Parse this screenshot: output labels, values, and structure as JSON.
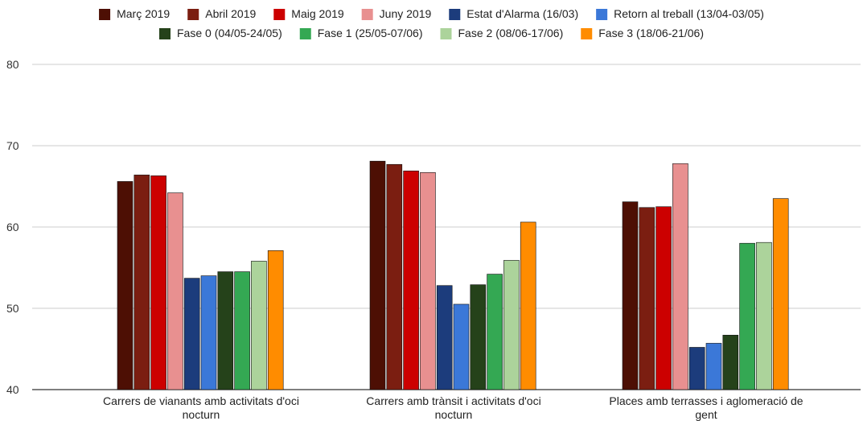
{
  "chart_data": {
    "type": "bar",
    "title": "",
    "xlabel": "",
    "ylabel": "",
    "ylim": [
      40,
      80
    ],
    "yticks": [
      40,
      50,
      60,
      70,
      80
    ],
    "grid": true,
    "legend_position": "top",
    "categories": [
      [
        "Carrers de vianants amb activitats d'oci",
        "nocturn"
      ],
      [
        "Carrers amb trànsit i activitats d'oci",
        "nocturn"
      ],
      [
        "Places amb terrasses i aglomeració de",
        "gent"
      ]
    ],
    "series": [
      {
        "name": "Març 2019",
        "color": "#4d0f04",
        "values": [
          65.6,
          68.1,
          63.1
        ]
      },
      {
        "name": "Abril 2019",
        "color": "#7b1e11",
        "values": [
          66.4,
          67.7,
          62.4
        ]
      },
      {
        "name": "Maig 2019",
        "color": "#cc0000",
        "values": [
          66.3,
          66.9,
          62.5
        ]
      },
      {
        "name": "Juny 2019",
        "color": "#e89090",
        "values": [
          64.2,
          66.7,
          67.8
        ]
      },
      {
        "name": "Estat d'Alarma (16/03)",
        "color": "#1c3c7c",
        "values": [
          53.7,
          52.8,
          45.2
        ]
      },
      {
        "name": "Retorn al treball (13/04-03/05)",
        "color": "#3b78d8",
        "values": [
          54.0,
          50.5,
          45.7
        ]
      },
      {
        "name": "Fase 0 (04/05-24/05)",
        "color": "#25421a",
        "values": [
          54.5,
          52.9,
          46.7
        ]
      },
      {
        "name": "Fase 1 (25/05-07/06)",
        "color": "#34a853",
        "values": [
          54.5,
          54.2,
          58.0
        ]
      },
      {
        "name": "Fase 2 (08/06-17/06)",
        "color": "#acd39b",
        "values": [
          55.8,
          55.9,
          58.1
        ]
      },
      {
        "name": "Fase 3 (18/06-21/06)",
        "color": "#ff8c00",
        "values": [
          57.1,
          60.6,
          63.5
        ]
      }
    ]
  }
}
